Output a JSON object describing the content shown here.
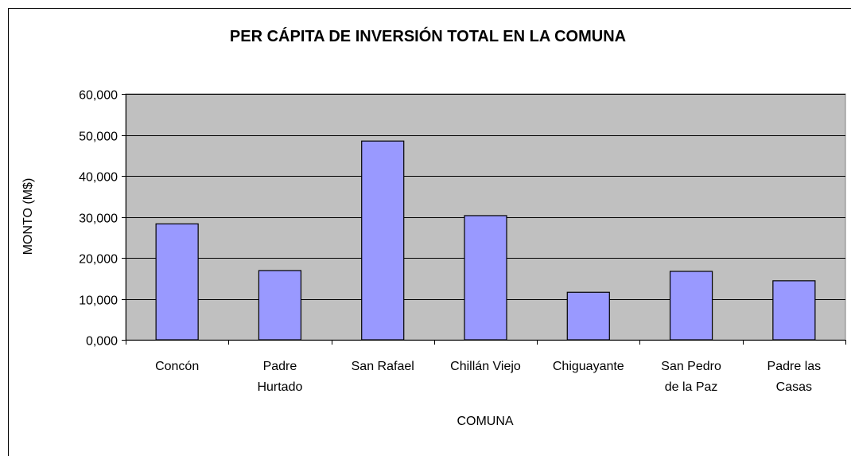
{
  "chart_data": {
    "type": "bar",
    "title": "PER CÁPITA DE INVERSIÓN TOTAL EN LA COMUNA",
    "x_label": "COMUNA",
    "y_label": "MONTO (M$)",
    "categories": [
      "Concón",
      "Padre Hurtado",
      "San Rafael",
      "Chillán Viejo",
      "Chiguayante",
      "San Pedro de la Paz",
      "Padre las Casas"
    ],
    "values": [
      28300,
      16900,
      48500,
      30300,
      11600,
      16700,
      14400
    ],
    "color": "#9999ff",
    "ylim": [
      0,
      60000
    ],
    "yticks": [
      {
        "value": 0,
        "label": "0,000"
      },
      {
        "value": 10000,
        "label": "10,000"
      },
      {
        "value": 20000,
        "label": "20,000"
      },
      {
        "value": 30000,
        "label": "30,000"
      },
      {
        "value": 40000,
        "label": "40,000"
      },
      {
        "value": 50000,
        "label": "50,000"
      },
      {
        "value": 60000,
        "label": "60,000"
      }
    ],
    "grid": true
  }
}
